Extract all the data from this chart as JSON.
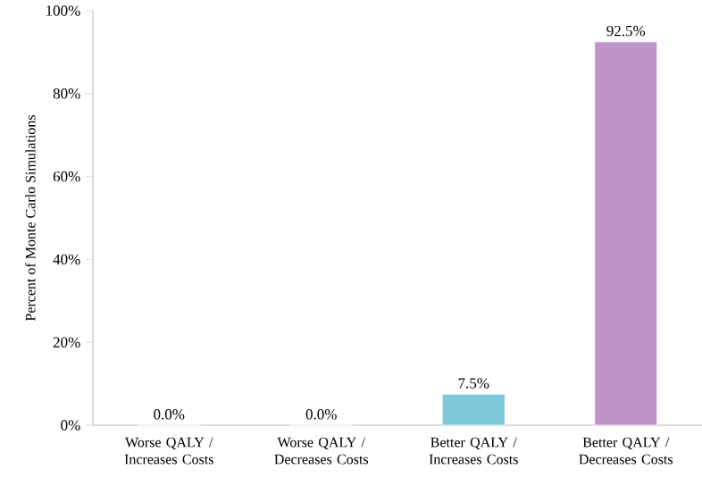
{
  "chart_data": {
    "type": "bar",
    "ylabel": "Percent of Monte Carlo Simulations",
    "categories": [
      "Worse QALY / Increases Costs",
      "Worse QALY / Decreases Costs",
      "Better QALY / Increases Costs",
      "Better QALY / Decreases Costs"
    ],
    "values": [
      0.0,
      0.0,
      7.5,
      92.5
    ],
    "value_labels": [
      "0.0%",
      "0.0%",
      "7.5%",
      "92.5%"
    ],
    "colors": [
      "#7ec8dc",
      "#7ec8dc",
      "#7ec8dc",
      "#bf94c8"
    ],
    "ylim": [
      0,
      100
    ],
    "yticks": [
      {
        "value": 0,
        "label": "0%"
      },
      {
        "value": 20,
        "label": "20%"
      },
      {
        "value": 40,
        "label": "40%"
      },
      {
        "value": 60,
        "label": "60%"
      },
      {
        "value": 80,
        "label": "80%"
      },
      {
        "value": 100,
        "label": "100%"
      }
    ],
    "grid": false
  }
}
